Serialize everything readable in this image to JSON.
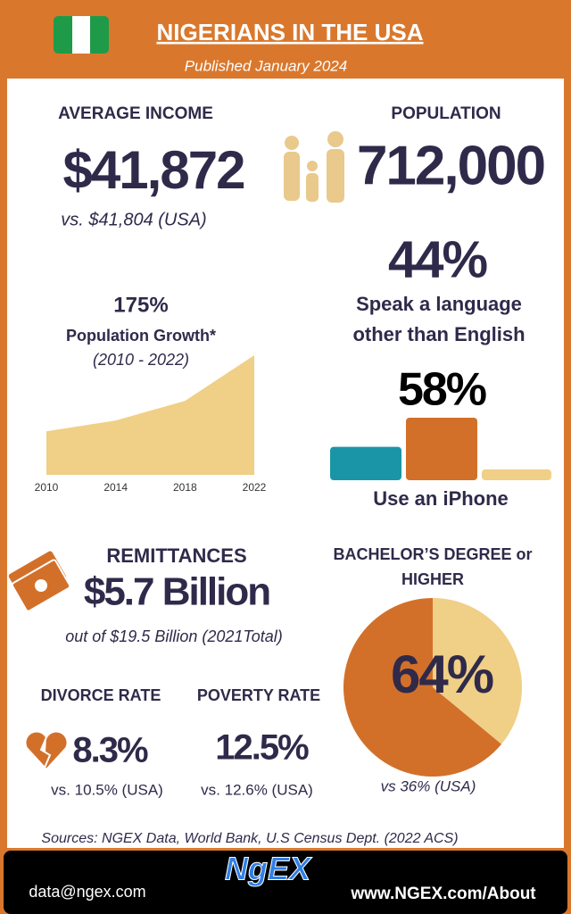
{
  "header": {
    "title": "NIGERIANS IN THE USA",
    "subtitle": "Published January 2024"
  },
  "income": {
    "label": "AVERAGE INCOME",
    "value": "$41,872",
    "comparison": "vs. $41,804 (USA)"
  },
  "population": {
    "label": "POPULATION",
    "value": "712,000"
  },
  "growth": {
    "value": "175%",
    "label": "Population Growth*",
    "period": "(2010 - 2022)",
    "chart": {
      "type": "area",
      "x": [
        2010,
        2014,
        2018,
        2022
      ],
      "values": [
        100,
        125,
        170,
        275
      ],
      "ylim": [
        0,
        275
      ],
      "color": "#f0cf86"
    }
  },
  "language": {
    "value": "44%",
    "label_line1": "Speak a language",
    "label_line2": "other than English"
  },
  "iphone": {
    "label": "Use an iPhone",
    "chart": {
      "type": "bar",
      "values": [
        31,
        58,
        10
      ],
      "value_labels": [
        null,
        "58%",
        null
      ],
      "colors": [
        "#1a95a8",
        "#d2702a",
        "#f0cf86"
      ]
    }
  },
  "remittances": {
    "label": "REMITTANCES",
    "value": "$5.7 Billion",
    "comparison": "out of $19.5 Billion (2021Total)"
  },
  "divorce": {
    "label": "DIVORCE RATE",
    "value": "8.3%",
    "comparison": "vs. 10.5% (USA)"
  },
  "poverty": {
    "label": "POVERTY RATE",
    "value": "12.5%",
    "comparison": "vs. 12.6% (USA)"
  },
  "degree": {
    "label_line1": "BACHELOR’S DEGREE or",
    "label_line2": "HIGHER",
    "comparison": "vs 36% (USA)",
    "chart": {
      "type": "pie",
      "values": [
        64,
        36
      ],
      "value_labels": [
        "64%",
        null
      ],
      "colors": [
        "#d2702a",
        "#f0cf86"
      ]
    }
  },
  "sources": "Sources: NGEX Data, World Bank, U.S Census Dept. (2022 ACS)",
  "footer": {
    "logo": "NgEX",
    "email": "data@ngex.com",
    "url": "www.NGEX.com/About"
  }
}
